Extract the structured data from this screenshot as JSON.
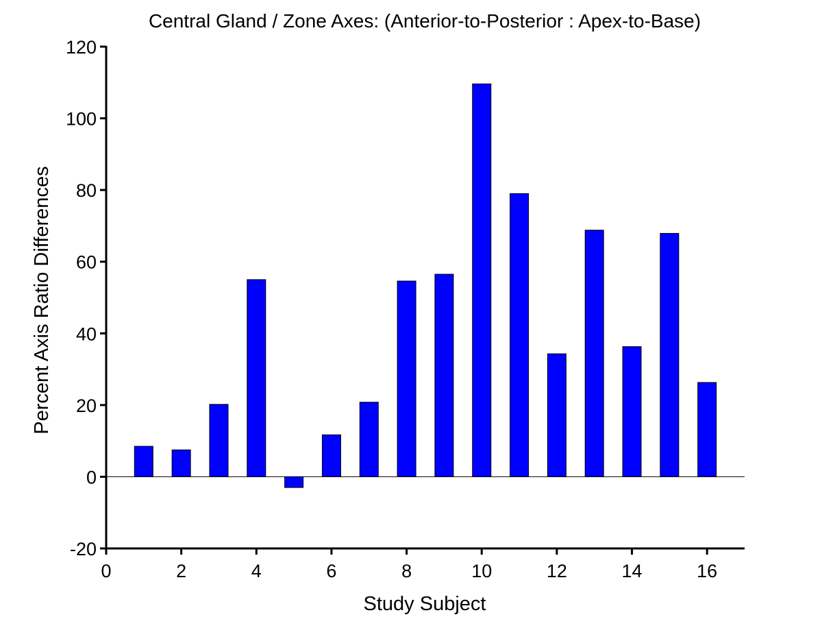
{
  "chart_data": {
    "type": "bar",
    "title": "Central Gland / Zone Axes: (Anterior-to-Posterior : Apex-to-Base)",
    "xlabel": "Study Subject",
    "ylabel": "Percent Axis Ratio Differences",
    "x": [
      1,
      2,
      3,
      4,
      5,
      6,
      7,
      8,
      9,
      10,
      11,
      12,
      13,
      14,
      15,
      16
    ],
    "values": [
      8.5,
      7.5,
      20.2,
      55.0,
      -3.0,
      11.7,
      20.8,
      54.6,
      56.5,
      109.6,
      79.0,
      34.3,
      68.8,
      36.3,
      67.9,
      26.3
    ],
    "xlim": [
      0,
      17
    ],
    "ylim": [
      -20,
      120
    ],
    "xticks": [
      0,
      2,
      4,
      6,
      8,
      10,
      12,
      14,
      16
    ],
    "yticks": [
      -20,
      0,
      20,
      40,
      60,
      80,
      100,
      120
    ],
    "bar_color": "#0000ff",
    "grid": false,
    "legend": "none"
  }
}
